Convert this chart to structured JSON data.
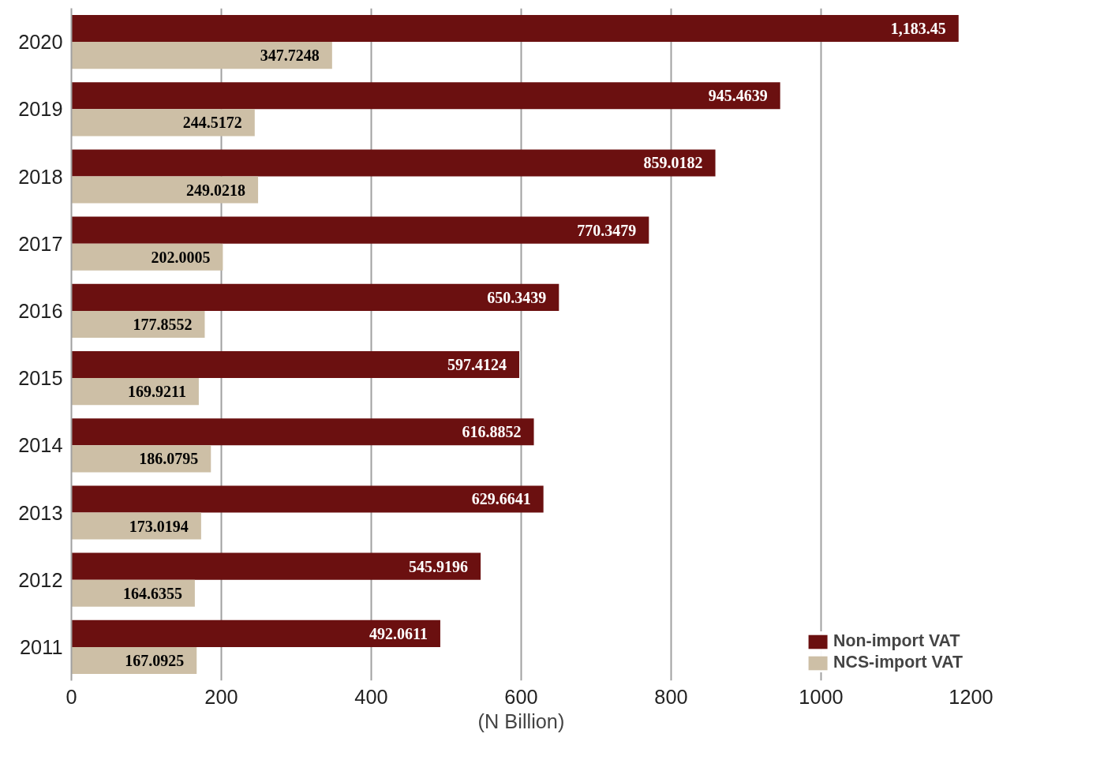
{
  "chart_data": {
    "type": "bar",
    "orientation": "horizontal",
    "categories": [
      "2020",
      "2019",
      "2018",
      "2017",
      "2016",
      "2015",
      "2014",
      "2013",
      "2012",
      "2011"
    ],
    "xlabel": "(N Billion)",
    "xlim": [
      0,
      1200
    ],
    "xticks": [
      0,
      200,
      400,
      600,
      800,
      1000,
      1200
    ],
    "grid": "x",
    "legend": "bottom right",
    "series": [
      {
        "name": "Non-import VAT",
        "color": "#6b1010",
        "values": [
          1183.45,
          945.4639,
          859.0182,
          770.3479,
          650.3439,
          597.4124,
          616.8852,
          629.6641,
          545.9196,
          492.0611
        ],
        "value_labels": [
          "1,183.45",
          "945.4639",
          "859.0182",
          "770.3479",
          "650.3439",
          "597.4124",
          "616.8852",
          "629.6641",
          "545.9196",
          "492.0611"
        ]
      },
      {
        "name": "NCS-import VAT",
        "color": "#cdbfa6",
        "values": [
          347.7248,
          244.5172,
          249.0218,
          202.0005,
          177.8552,
          169.9211,
          186.0795,
          173.0194,
          164.6355,
          167.0925
        ],
        "value_labels": [
          "347.7248",
          "244.5172",
          "249.0218",
          "202.0005",
          "177.8552",
          "169.9211",
          "186.0795",
          "173.0194",
          "164.6355",
          "167.0925"
        ]
      }
    ]
  }
}
